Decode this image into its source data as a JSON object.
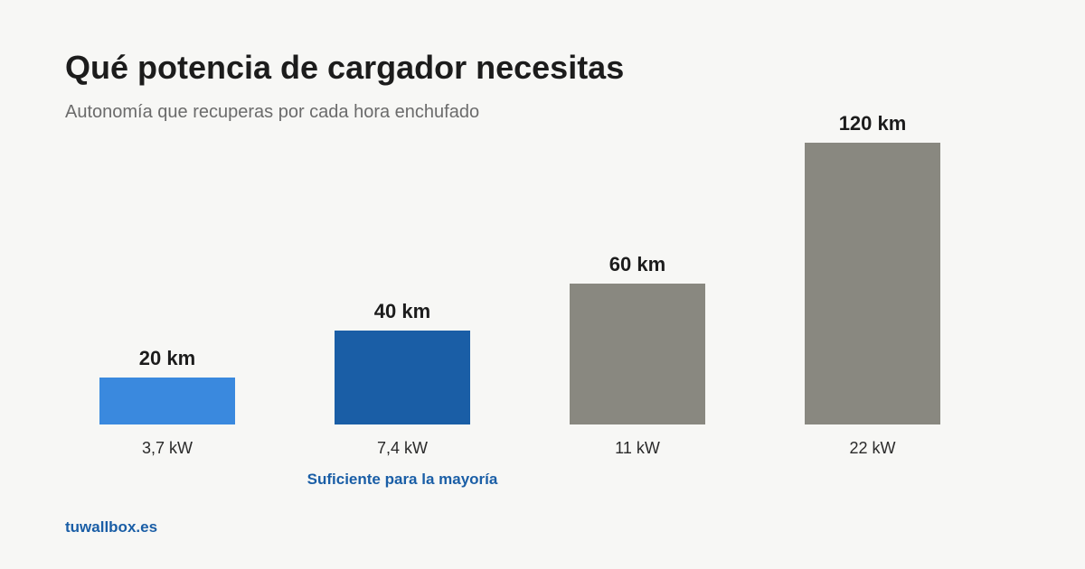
{
  "header": {
    "title": "Qué potencia de cargador necesitas",
    "subtitle": "Autonomía que recuperas por cada hora enchufado"
  },
  "chart_data": {
    "type": "bar",
    "title": "Qué potencia de cargador necesitas",
    "subtitle": "Autonomía que recuperas por cada hora enchufado",
    "categories": [
      "3,7 kW",
      "7,4 kW",
      "11 kW",
      "22 kW"
    ],
    "values": [
      20,
      40,
      60,
      120
    ],
    "value_labels": [
      "20 km",
      "40 km",
      "60 km",
      "120 km"
    ],
    "unit": "km",
    "ylim": [
      0,
      120
    ],
    "grid": false,
    "legend": "none",
    "colors": [
      "#3a89de",
      "#1a5ea6",
      "#898880",
      "#898880"
    ],
    "annotations": [
      {
        "category": "7,4 kW",
        "text": "Suficiente para la mayoría",
        "color": "#1a5ea6"
      }
    ]
  },
  "footer": {
    "brand": "tuwallbox.es"
  }
}
